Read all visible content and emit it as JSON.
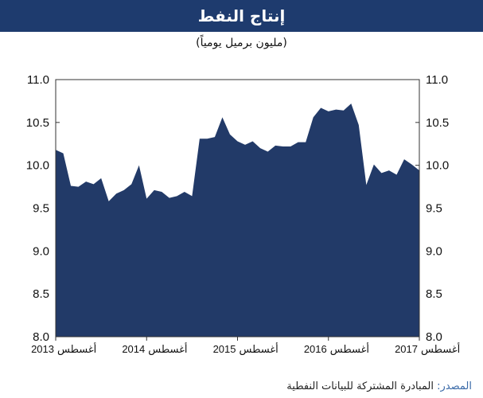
{
  "title": "إنتاج النفط",
  "subtitle": "(مليون برميل يومياً)",
  "source": {
    "label": "المصدر:",
    "text": "المبادرة المشتركة للبيانات النفطية"
  },
  "colors": {
    "header_bg": "#1e3b6e",
    "area_fill": "#223a68",
    "source_label": "#3a6aa8"
  },
  "chart_data": {
    "type": "area",
    "ylim": [
      8.0,
      11.0
    ],
    "yticks": [
      "8.0",
      "8.5",
      "9.0",
      "9.5",
      "10.0",
      "10.5",
      "11.0"
    ],
    "xtick_labels": [
      {
        "month": "أغسطس",
        "year": "2013"
      },
      {
        "month": "أغسطس",
        "year": "2014"
      },
      {
        "month": "أغسطس",
        "year": "2015"
      },
      {
        "month": "أغسطس",
        "year": "2016"
      },
      {
        "month": "أغسطس",
        "year": "2017"
      }
    ],
    "x": [
      "2013-08",
      "2013-09",
      "2013-10",
      "2013-11",
      "2013-12",
      "2014-01",
      "2014-02",
      "2014-03",
      "2014-04",
      "2014-05",
      "2014-06",
      "2014-07",
      "2014-08",
      "2014-09",
      "2014-10",
      "2014-11",
      "2014-12",
      "2015-01",
      "2015-02",
      "2015-03",
      "2015-04",
      "2015-05",
      "2015-06",
      "2015-07",
      "2015-08",
      "2015-09",
      "2015-10",
      "2015-11",
      "2015-12",
      "2016-01",
      "2016-02",
      "2016-03",
      "2016-04",
      "2016-05",
      "2016-06",
      "2016-07",
      "2016-08",
      "2016-09",
      "2016-10",
      "2016-11",
      "2016-12",
      "2017-01",
      "2017-02",
      "2017-03",
      "2017-04",
      "2017-05",
      "2017-06",
      "2017-07",
      "2017-08"
    ],
    "values": [
      10.18,
      10.14,
      9.76,
      9.75,
      9.81,
      9.78,
      9.85,
      9.58,
      9.67,
      9.71,
      9.78,
      10.0,
      9.61,
      9.71,
      9.69,
      9.62,
      9.64,
      9.69,
      9.64,
      10.31,
      10.31,
      10.33,
      10.56,
      10.36,
      10.28,
      10.24,
      10.28,
      10.2,
      10.16,
      10.23,
      10.22,
      10.22,
      10.27,
      10.27,
      10.56,
      10.67,
      10.63,
      10.65,
      10.64,
      10.72,
      10.47,
      9.77,
      10.01,
      9.91,
      9.94,
      9.89,
      10.07,
      10.01,
      9.94
    ],
    "grid": false
  }
}
